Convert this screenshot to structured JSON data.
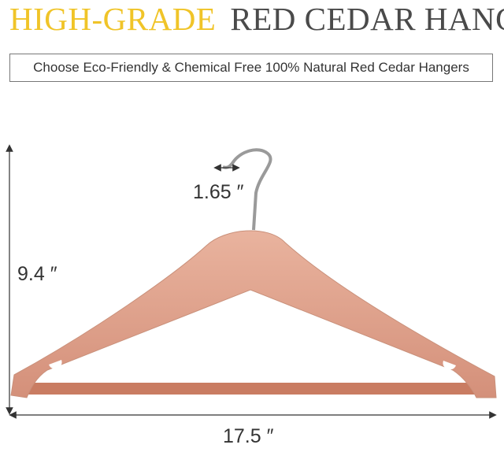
{
  "header": {
    "title_highlight": "HIGH-GRADE",
    "title_main": "RED CEDAR HANGER",
    "subtitle": "Choose Eco-Friendly & Chemical Free 100% Natural Red Cedar Hangers"
  },
  "dimensions": {
    "hook": "1.65 ″",
    "height": "9.4 ″",
    "width": "17.5 ″"
  }
}
